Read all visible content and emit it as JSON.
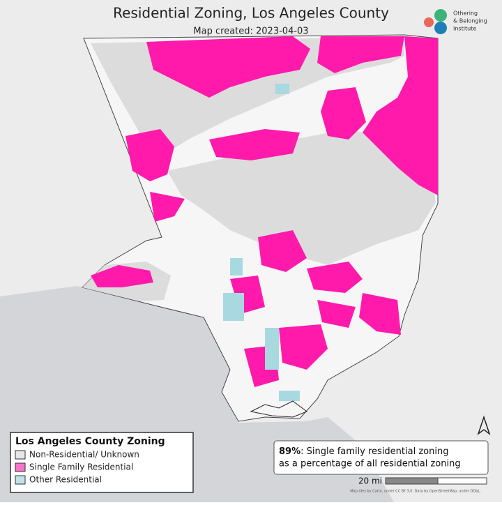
{
  "header": {
    "title": "Residential Zoning, Los Angeles County",
    "subtitle": "Map created: 2023-04-03"
  },
  "logo": {
    "lines": [
      "Othering",
      "& Belonging",
      "Institute"
    ]
  },
  "legend": {
    "title": "Los Angeles County Zoning",
    "items": [
      {
        "label": "Non-Residential/ Unknown",
        "color": "#e6e6e6"
      },
      {
        "label": "Single Family Residential",
        "color": "#f774c9"
      },
      {
        "label": "Other Residential",
        "color": "#bfe3e8"
      }
    ]
  },
  "stat": {
    "value": "89%",
    "text": ": Single family residential zoning",
    "text2": "as a percentage of all residential zoning"
  },
  "scale": {
    "label": "20 mi"
  },
  "attribution": "Map tiles by Carto, under CC BY 3.0. Data by OpenStreetMap, under ODbL."
}
